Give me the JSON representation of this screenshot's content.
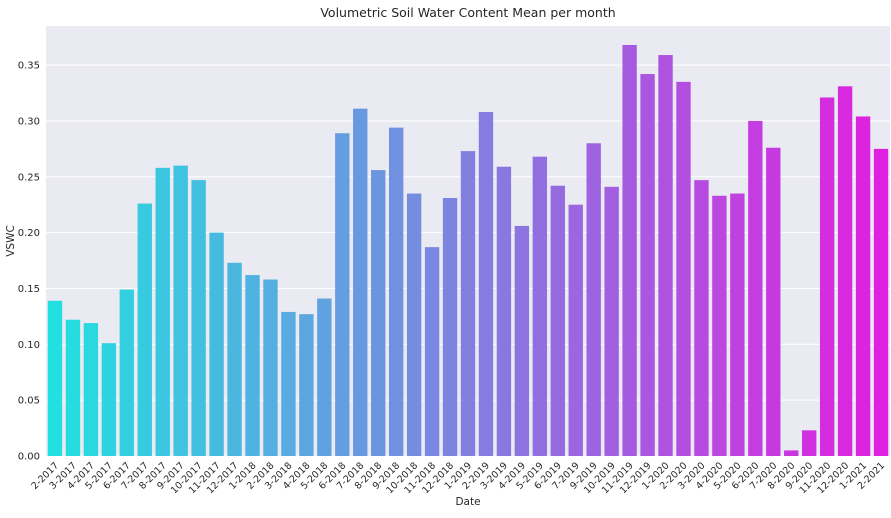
{
  "chart_data": {
    "type": "bar",
    "title": "Volumetric Soil Water Content Mean per month",
    "xlabel": "Date",
    "ylabel": "VSWC",
    "ylim": [
      0,
      0.385
    ],
    "yticks": [
      "0.00",
      "0.05",
      "0.10",
      "0.15",
      "0.20",
      "0.25",
      "0.30",
      "0.35"
    ],
    "ytick_values": [
      0,
      0.05,
      0.1,
      0.15,
      0.2,
      0.25,
      0.3,
      0.35
    ],
    "grid": true,
    "background_color": "#eaeaf2",
    "palette": "cool (cyan to magenta)",
    "color_start": "#22e0e0",
    "color_end": "#e020e0",
    "categories": [
      "2-2017",
      "3-2017",
      "4-2017",
      "5-2017",
      "6-2017",
      "7-2017",
      "8-2017",
      "9-2017",
      "10-2017",
      "11-2017",
      "12-2017",
      "1-2018",
      "2-2018",
      "3-2018",
      "4-2018",
      "5-2018",
      "6-2018",
      "7-2018",
      "8-2018",
      "9-2018",
      "10-2018",
      "11-2018",
      "12-2018",
      "1-2019",
      "2-2019",
      "3-2019",
      "4-2019",
      "5-2019",
      "6-2019",
      "7-2019",
      "9-2019",
      "10-2019",
      "11-2019",
      "12-2019",
      "1-2020",
      "2-2020",
      "3-2020",
      "4-2020",
      "5-2020",
      "6-2020",
      "7-2020",
      "8-2020",
      "9-2020",
      "11-2020",
      "12-2020",
      "1-2021",
      "2-2021"
    ],
    "values": [
      0.139,
      0.122,
      0.119,
      0.101,
      0.149,
      0.226,
      0.258,
      0.26,
      0.247,
      0.2,
      0.173,
      0.162,
      0.158,
      0.129,
      0.127,
      0.141,
      0.289,
      0.311,
      0.256,
      0.294,
      0.235,
      0.187,
      0.231,
      0.273,
      0.308,
      0.259,
      0.206,
      0.268,
      0.242,
      0.225,
      0.28,
      0.241,
      0.368,
      0.342,
      0.359,
      0.335,
      0.247,
      0.233,
      0.235,
      0.3,
      0.276,
      0.005,
      0.023,
      0.321,
      0.331,
      0.304,
      0.275
    ]
  }
}
